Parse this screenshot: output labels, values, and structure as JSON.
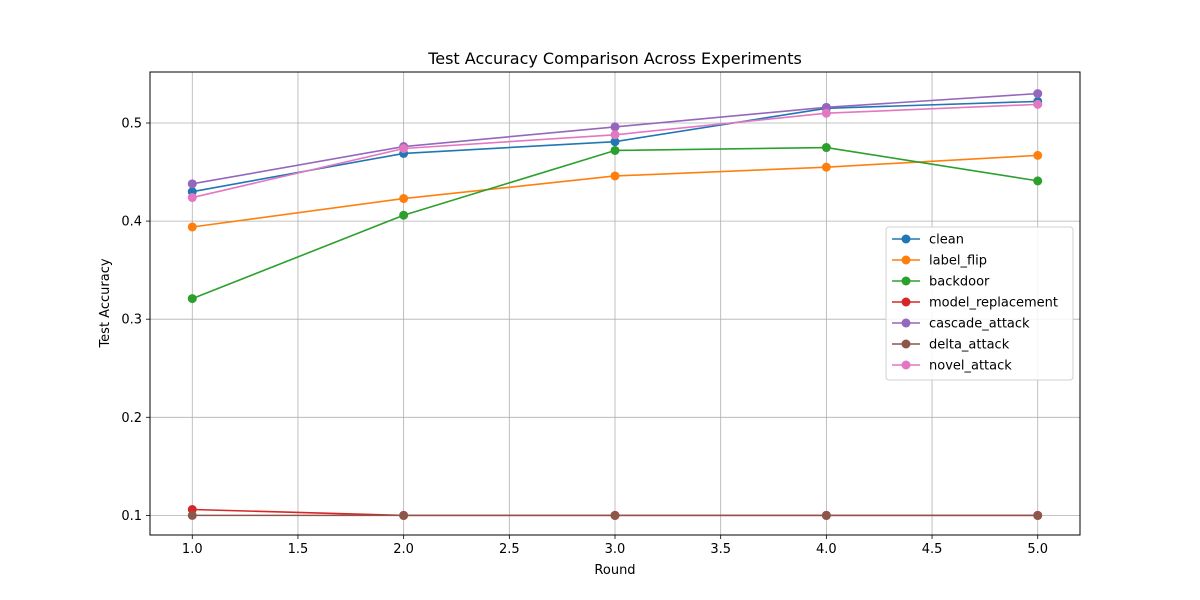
{
  "chart_data": {
    "type": "line",
    "title": "Test Accuracy Comparison Across Experiments",
    "xlabel": "Round",
    "ylabel": "Test Accuracy",
    "xlim": [
      0.8,
      5.2
    ],
    "ylim": [
      0.08,
      0.552
    ],
    "xticks": [
      1.0,
      1.5,
      2.0,
      2.5,
      3.0,
      3.5,
      4.0,
      4.5,
      5.0
    ],
    "xtick_labels": [
      "1.0",
      "1.5",
      "2.0",
      "2.5",
      "3.0",
      "3.5",
      "4.0",
      "4.5",
      "5.0"
    ],
    "yticks": [
      0.1,
      0.2,
      0.3,
      0.4,
      0.5
    ],
    "ytick_labels": [
      "0.1",
      "0.2",
      "0.3",
      "0.4",
      "0.5"
    ],
    "grid": true,
    "legend_position": "center-right",
    "x": [
      1,
      2,
      3,
      4,
      5
    ],
    "series": [
      {
        "name": "clean",
        "color": "#1f77b4",
        "values": [
          0.43,
          0.469,
          0.481,
          0.515,
          0.522
        ]
      },
      {
        "name": "label_flip",
        "color": "#ff7f0e",
        "values": [
          0.394,
          0.423,
          0.446,
          0.455,
          0.467
        ]
      },
      {
        "name": "backdoor",
        "color": "#2ca02c",
        "values": [
          0.321,
          0.406,
          0.472,
          0.475,
          0.441
        ]
      },
      {
        "name": "model_replacement",
        "color": "#d62728",
        "values": [
          0.106,
          0.1,
          0.1,
          0.1,
          0.1
        ]
      },
      {
        "name": "cascade_attack",
        "color": "#9467bd",
        "values": [
          0.438,
          0.476,
          0.496,
          0.516,
          0.53
        ]
      },
      {
        "name": "delta_attack",
        "color": "#8c564b",
        "values": [
          0.1,
          0.1,
          0.1,
          0.1,
          0.1
        ]
      },
      {
        "name": "novel_attack",
        "color": "#e377c2",
        "values": [
          0.424,
          0.474,
          0.488,
          0.51,
          0.519
        ]
      }
    ]
  }
}
